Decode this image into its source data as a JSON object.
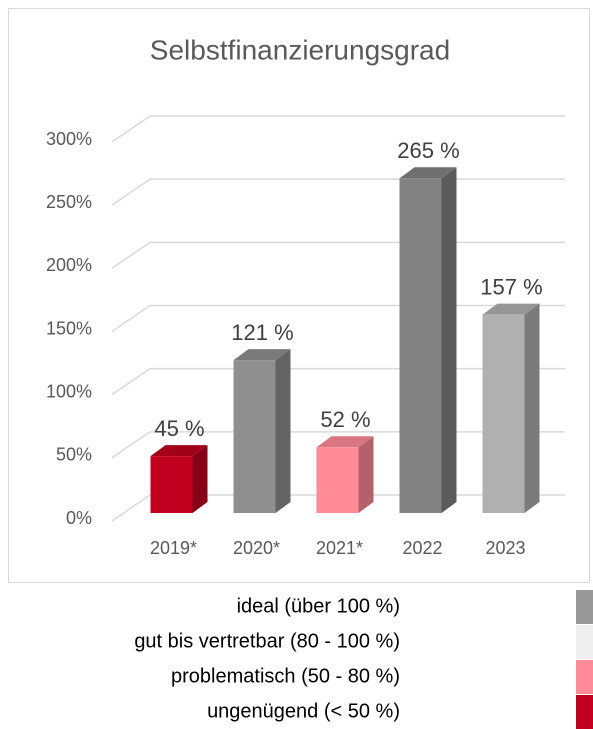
{
  "chart_data": {
    "type": "bar3d",
    "title": "Selbstfinanzierungsgrad",
    "categories": [
      "2019*",
      "2020*",
      "2021*",
      "2022",
      "2023"
    ],
    "values": [
      45,
      121,
      52,
      265,
      157
    ],
    "value_labels": [
      "45 %",
      "121 %",
      "52 %",
      "265 %",
      "157 %"
    ],
    "colors": [
      "#c0001e",
      "#8f8f8f",
      "#ff8b98",
      "#828282",
      "#b0b0b0"
    ],
    "ylim": [
      0,
      300
    ],
    "yticks": [
      {
        "value": 0,
        "label": "0%"
      },
      {
        "value": 50,
        "label": "50%"
      },
      {
        "value": 100,
        "label": "100%"
      },
      {
        "value": 150,
        "label": "150%"
      },
      {
        "value": 200,
        "label": "200%"
      },
      {
        "value": 250,
        "label": "250%"
      },
      {
        "value": 300,
        "label": "300%"
      }
    ],
    "grid": true,
    "legend": [
      {
        "label": "ideal (über 100 %)",
        "color": "#999999"
      },
      {
        "label": "gut bis vertretbar (80 - 100 %)",
        "color": "#eeeeee"
      },
      {
        "label": "problematisch (50 - 80 %)",
        "color": "#ff8b98"
      },
      {
        "label": "ungenügend (< 50 %)",
        "color": "#c0001e"
      }
    ]
  }
}
